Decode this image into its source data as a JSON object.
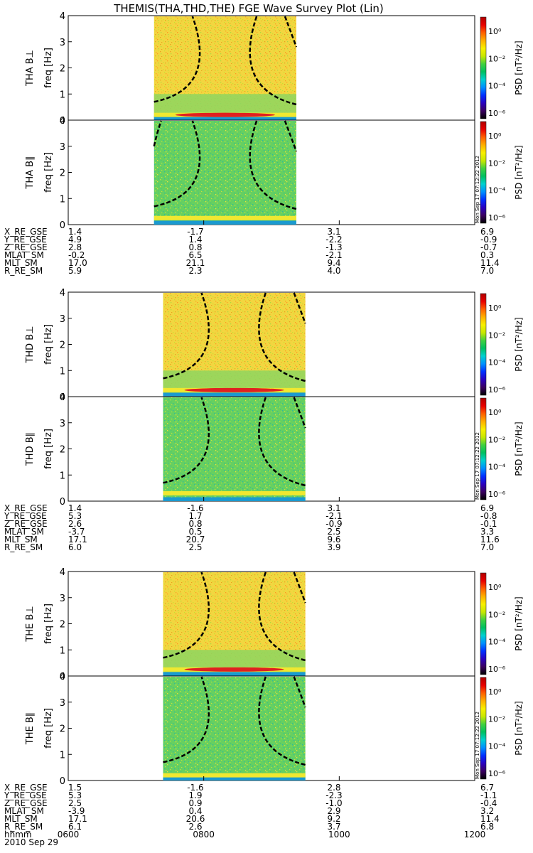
{
  "title": "THEMIS(THA,THD,THE) FGE Wave Survey Plot (Lin)",
  "timestamp_text": "Mon Sep 17 07:12:22 2012",
  "colors": {
    "colorbar": [
      "#000000",
      "#3a0060",
      "#2a00c0",
      "#0030ff",
      "#0090ff",
      "#00d0d0",
      "#00c060",
      "#40d040",
      "#c8e800",
      "#f8f000",
      "#ffb000",
      "#ff6000",
      "#e80000",
      "#b00000"
    ],
    "background_green": "#5ed05e",
    "background_yellow": "#f0d83a",
    "dashed_curve": "#000000"
  },
  "chart_data": [
    {
      "type": "heatmap",
      "probe": "THA",
      "panels": [
        {
          "name": "THA B⊥",
          "ylabel": "freq [Hz]",
          "ylim": [
            0,
            4
          ],
          "yticks": [
            "0",
            "1",
            "2",
            "3",
            "4"
          ],
          "data_range_hhmm": [
            "0716",
            "0922"
          ],
          "dominant_color": "yellow",
          "band_freq_hz": 0.2
        },
        {
          "name": "THA B∥",
          "ylabel": "freq [Hz]",
          "ylim": [
            0,
            4
          ],
          "yticks": [
            "0",
            "1",
            "2",
            "3",
            "4"
          ],
          "data_range_hhmm": [
            "0716",
            "0922"
          ],
          "dominant_color": "green",
          "band_freq_hz": 0.25
        }
      ],
      "colorbar": {
        "label": "PSD [nT²/Hz]",
        "ticks": [
          "10⁰",
          "10⁻²",
          "10⁻⁴",
          "10⁻⁶"
        ],
        "range": [
          1e-07,
          10
        ]
      },
      "ephemeris": {
        "labels": [
          "X_RE_GSE",
          "Y_RE_GSE",
          "Z_RE_GSE",
          "MLAT_SM",
          "MLT_SM",
          "R_RE_SM"
        ],
        "values": [
          [
            "1.4",
            "-1.7",
            "3.1",
            "6.9"
          ],
          [
            "4.9",
            "1.4",
            "-2.2",
            "-0.9"
          ],
          [
            "2.8",
            "0.8",
            "-1.3",
            "-0.7"
          ],
          [
            "-0.2",
            "6.5",
            "-2.1",
            "0.3"
          ],
          [
            "17.0",
            "21.1",
            "9.4",
            "11.4"
          ],
          [
            "5.9",
            "2.3",
            "4.0",
            "7.0"
          ]
        ]
      }
    },
    {
      "type": "heatmap",
      "probe": "THD",
      "panels": [
        {
          "name": "THD B⊥",
          "ylabel": "freq [Hz]",
          "ylim": [
            0,
            4
          ],
          "yticks": [
            "0",
            "1",
            "2",
            "3",
            "4"
          ],
          "data_range_hhmm": [
            "0724",
            "0930"
          ],
          "dominant_color": "yellow",
          "band_freq_hz": 0.25
        },
        {
          "name": "THD B∥",
          "ylabel": "freq [Hz]",
          "ylim": [
            0,
            4
          ],
          "yticks": [
            "0",
            "1",
            "2",
            "3",
            "4"
          ],
          "data_range_hhmm": [
            "0724",
            "0930"
          ],
          "dominant_color": "green",
          "band_freq_hz": 0.3
        }
      ],
      "colorbar": {
        "label": "PSD [nT²/Hz]",
        "ticks": [
          "10⁰",
          "10⁻²",
          "10⁻⁴",
          "10⁻⁶"
        ],
        "range": [
          1e-07,
          10
        ]
      },
      "ephemeris": {
        "labels": [
          "X_RE_GSE",
          "Y_RE_GSE",
          "Z_RE_GSE",
          "MLAT_SM",
          "MLT_SM",
          "R_RE_SM"
        ],
        "values": [
          [
            "1.4",
            "-1.6",
            "3.1",
            "6.9"
          ],
          [
            "5.3",
            "1.7",
            "-2.1",
            "-0.8"
          ],
          [
            "2.6",
            "0.8",
            "-0.9",
            "-0.1"
          ],
          [
            "-3.7",
            "0.5",
            "2.5",
            "3.3"
          ],
          [
            "17.1",
            "20.7",
            "9.6",
            "11.6"
          ],
          [
            "6.0",
            "2.5",
            "3.9",
            "7.0"
          ]
        ]
      }
    },
    {
      "type": "heatmap",
      "probe": "THE",
      "panels": [
        {
          "name": "THE B⊥",
          "ylabel": "freq [Hz]",
          "ylim": [
            0,
            4
          ],
          "yticks": [
            "0",
            "1",
            "2",
            "3",
            "4"
          ],
          "data_range_hhmm": [
            "0724",
            "0930"
          ],
          "dominant_color": "yellow",
          "band_freq_hz": 0.25
        },
        {
          "name": "THE B∥",
          "ylabel": "freq [Hz]",
          "ylim": [
            0,
            4
          ],
          "yticks": [
            "0",
            "1",
            "2",
            "3",
            "4"
          ],
          "data_range_hhmm": [
            "0724",
            "0930"
          ],
          "dominant_color": "green",
          "band_freq_hz": 0.2
        }
      ],
      "colorbar": {
        "label": "PSD [nT²/Hz]",
        "ticks": [
          "10⁰",
          "10⁻²",
          "10⁻⁴",
          "10⁻⁶"
        ],
        "range": [
          1e-07,
          10
        ]
      },
      "ephemeris": {
        "labels": [
          "X_RE_GSE",
          "Y_RE_GSE",
          "Z_RE_GSE",
          "MLAT_SM",
          "MLT_SM",
          "R_RE_SM"
        ],
        "values": [
          [
            "1.5",
            "-1.6",
            "2.8",
            "6.7"
          ],
          [
            "5.3",
            "1.9",
            "-2.3",
            "-1.1"
          ],
          [
            "2.5",
            "0.9",
            "-1.0",
            "-0.4"
          ],
          [
            "-3.9",
            "0.4",
            "2.9",
            "3.2"
          ],
          [
            "17.1",
            "20.6",
            "9.2",
            "11.4"
          ],
          [
            "6.1",
            "2.6",
            "3.7",
            "6.8"
          ]
        ],
        "time_label": "hhmm",
        "time_ticks": [
          "0600",
          "0800",
          "1000",
          "1200"
        ],
        "date": "2010 Sep 29"
      }
    }
  ]
}
